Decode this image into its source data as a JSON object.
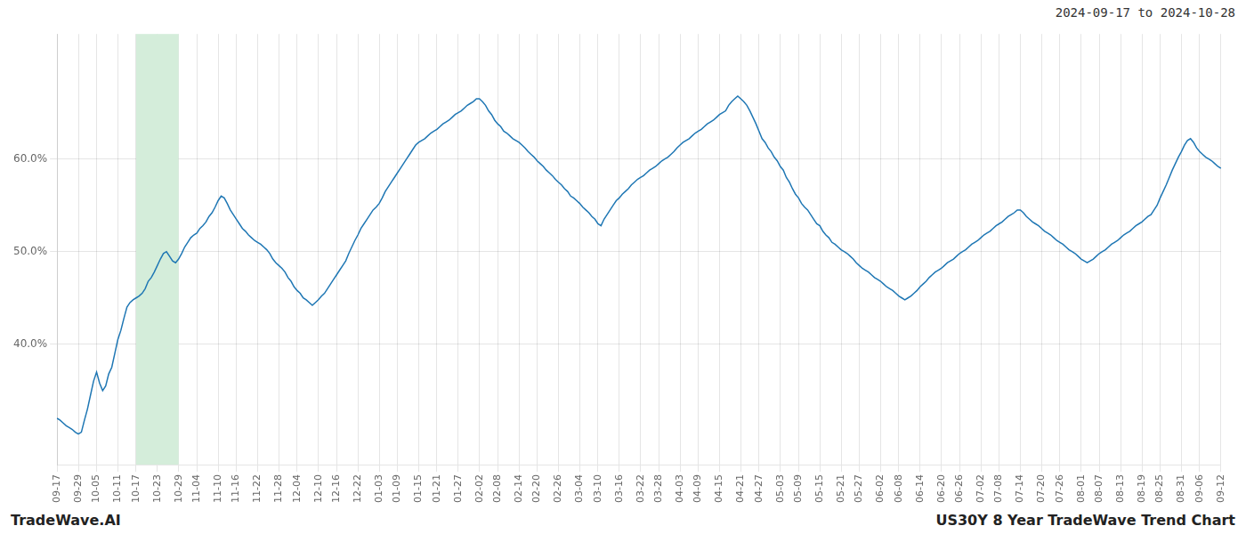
{
  "chart_data": {
    "type": "line",
    "title": "US30Y 8 Year TradeWave Trend Chart",
    "subtitle": "2024-09-17 to 2024-10-28",
    "annotations": [
      "TradeWave.AI"
    ],
    "color": "#1f77b4",
    "grid": true,
    "ylim": [
      0.27,
      0.735
    ],
    "yticks": [
      {
        "value": 0.4,
        "label": "40.0%"
      },
      {
        "value": 0.5,
        "label": "50.0%"
      },
      {
        "value": 0.6,
        "label": "60.0%"
      }
    ],
    "highlight": {
      "start": "10-17",
      "end": "10-29",
      "color": "#d4edda"
    },
    "categories": [
      "09-17",
      null,
      null,
      null,
      null,
      null,
      null,
      "09-29",
      null,
      null,
      null,
      null,
      null,
      "10-05",
      null,
      null,
      null,
      null,
      null,
      null,
      "10-11",
      null,
      null,
      null,
      null,
      null,
      "10-17",
      null,
      null,
      null,
      null,
      null,
      null,
      "10-23",
      null,
      null,
      null,
      null,
      null,
      null,
      "10-29",
      null,
      null,
      null,
      null,
      null,
      "11-04",
      null,
      null,
      null,
      null,
      null,
      null,
      "11-10",
      null,
      null,
      null,
      null,
      null,
      "11-16",
      null,
      null,
      null,
      null,
      null,
      null,
      "11-22",
      null,
      null,
      null,
      null,
      null,
      null,
      "11-28",
      null,
      null,
      null,
      null,
      null,
      "12-04",
      null,
      null,
      null,
      null,
      null,
      null,
      "12-10",
      null,
      null,
      null,
      null,
      null,
      "12-16",
      null,
      null,
      null,
      null,
      null,
      null,
      "12-22",
      null,
      null,
      null,
      null,
      null,
      null,
      "01-03",
      null,
      null,
      null,
      null,
      null,
      "01-09",
      null,
      null,
      null,
      null,
      null,
      null,
      "01-15",
      null,
      null,
      null,
      null,
      null,
      "01-21",
      null,
      null,
      null,
      null,
      null,
      null,
      "01-27",
      null,
      null,
      null,
      null,
      null,
      null,
      "02-02",
      null,
      null,
      null,
      null,
      null,
      "02-08",
      null,
      null,
      null,
      null,
      null,
      null,
      "02-14",
      null,
      null,
      null,
      null,
      null,
      "02-20",
      null,
      null,
      null,
      null,
      null,
      null,
      "02-26",
      null,
      null,
      null,
      null,
      null,
      null,
      "03-04",
      null,
      null,
      null,
      null,
      null,
      "03-10",
      null,
      null,
      null,
      null,
      null,
      null,
      "03-16",
      null,
      null,
      null,
      null,
      null,
      null,
      "03-22",
      null,
      null,
      null,
      null,
      null,
      "03-28",
      null,
      null,
      null,
      null,
      null,
      null,
      "04-03",
      null,
      null,
      null,
      null,
      null,
      "04-09",
      null,
      null,
      null,
      null,
      null,
      null,
      "04-15",
      null,
      null,
      null,
      null,
      null,
      null,
      "04-21",
      null,
      null,
      null,
      null,
      null,
      "04-27",
      null,
      null,
      null,
      null,
      null,
      null,
      "05-03",
      null,
      null,
      null,
      null,
      null,
      "05-09",
      null,
      null,
      null,
      null,
      null,
      null,
      "05-15",
      null,
      null,
      null,
      null,
      null,
      null,
      "05-21",
      null,
      null,
      null,
      null,
      null,
      "05-27",
      null,
      null,
      null,
      null,
      null,
      null,
      "06-02",
      null,
      null,
      null,
      null,
      null,
      "06-08",
      null,
      null,
      null,
      null,
      null,
      null,
      "06-14",
      null,
      null,
      null,
      null,
      null,
      null,
      "06-20",
      null,
      null,
      null,
      null,
      null,
      "06-26",
      null,
      null,
      null,
      null,
      null,
      null,
      "07-02",
      null,
      null,
      null,
      null,
      null,
      "07-08",
      null,
      null,
      null,
      null,
      null,
      null,
      "07-14",
      null,
      null,
      null,
      null,
      null,
      null,
      "07-20",
      null,
      null,
      null,
      null,
      null,
      "07-26",
      null,
      null,
      null,
      null,
      null,
      null,
      "08-01",
      null,
      null,
      null,
      null,
      null,
      "08-07",
      null,
      null,
      null,
      null,
      null,
      null,
      "08-13",
      null,
      null,
      null,
      null,
      null,
      null,
      "08-19",
      null,
      null,
      null,
      null,
      null,
      "08-25",
      null,
      null,
      null,
      null,
      null,
      null,
      "08-31",
      null,
      null,
      null,
      null,
      null,
      "09-06",
      null,
      null,
      null,
      null,
      null,
      null,
      "09-12"
    ],
    "values": [
      0.32,
      0.318,
      0.315,
      0.312,
      0.31,
      0.308,
      0.305,
      0.303,
      0.305,
      0.318,
      0.33,
      0.345,
      0.36,
      0.37,
      0.358,
      0.35,
      0.355,
      0.368,
      0.375,
      0.39,
      0.405,
      0.415,
      0.428,
      0.44,
      0.445,
      0.448,
      0.45,
      0.452,
      0.455,
      0.46,
      0.468,
      0.472,
      0.478,
      0.485,
      0.492,
      0.498,
      0.5,
      0.495,
      0.49,
      0.488,
      0.492,
      0.498,
      0.505,
      0.51,
      0.515,
      0.518,
      0.52,
      0.525,
      0.528,
      0.532,
      0.538,
      0.542,
      0.548,
      0.555,
      0.56,
      0.558,
      0.552,
      0.545,
      0.54,
      0.535,
      0.53,
      0.525,
      0.522,
      0.518,
      0.515,
      0.512,
      0.51,
      0.508,
      0.505,
      0.502,
      0.498,
      0.492,
      0.488,
      0.485,
      0.482,
      0.478,
      0.472,
      0.468,
      0.462,
      0.458,
      0.455,
      0.45,
      0.448,
      0.445,
      0.442,
      0.445,
      0.448,
      0.452,
      0.455,
      0.46,
      0.465,
      0.47,
      0.475,
      0.48,
      0.485,
      0.49,
      0.498,
      0.505,
      0.512,
      0.518,
      0.525,
      0.53,
      0.535,
      0.54,
      0.545,
      0.548,
      0.552,
      0.558,
      0.565,
      0.57,
      0.575,
      0.58,
      0.585,
      0.59,
      0.595,
      0.6,
      0.605,
      0.61,
      0.615,
      0.618,
      0.62,
      0.622,
      0.625,
      0.628,
      0.63,
      0.632,
      0.635,
      0.638,
      0.64,
      0.642,
      0.645,
      0.648,
      0.65,
      0.652,
      0.655,
      0.658,
      0.66,
      0.662,
      0.665,
      0.665,
      0.662,
      0.658,
      0.652,
      0.648,
      0.642,
      0.638,
      0.635,
      0.63,
      0.628,
      0.625,
      0.622,
      0.62,
      0.618,
      0.615,
      0.612,
      0.608,
      0.605,
      0.602,
      0.598,
      0.595,
      0.592,
      0.588,
      0.585,
      0.582,
      0.578,
      0.575,
      0.572,
      0.568,
      0.565,
      0.56,
      0.558,
      0.555,
      0.552,
      0.548,
      0.545,
      0.542,
      0.538,
      0.535,
      0.53,
      0.528,
      0.535,
      0.54,
      0.545,
      0.55,
      0.555,
      0.558,
      0.562,
      0.565,
      0.568,
      0.572,
      0.575,
      0.578,
      0.58,
      0.582,
      0.585,
      0.588,
      0.59,
      0.592,
      0.595,
      0.598,
      0.6,
      0.602,
      0.605,
      0.608,
      0.612,
      0.615,
      0.618,
      0.62,
      0.622,
      0.625,
      0.628,
      0.63,
      0.632,
      0.635,
      0.638,
      0.64,
      0.642,
      0.645,
      0.648,
      0.65,
      0.652,
      0.658,
      0.662,
      0.665,
      0.668,
      0.665,
      0.662,
      0.658,
      0.652,
      0.645,
      0.638,
      0.63,
      0.622,
      0.618,
      0.612,
      0.608,
      0.602,
      0.598,
      0.592,
      0.588,
      0.58,
      0.575,
      0.568,
      0.562,
      0.558,
      0.552,
      0.548,
      0.545,
      0.54,
      0.535,
      0.53,
      0.528,
      0.522,
      0.518,
      0.515,
      0.51,
      0.508,
      0.505,
      0.502,
      0.5,
      0.498,
      0.495,
      0.492,
      0.488,
      0.485,
      0.482,
      0.48,
      0.478,
      0.475,
      0.472,
      0.47,
      0.468,
      0.465,
      0.462,
      0.46,
      0.458,
      0.455,
      0.452,
      0.45,
      0.448,
      0.45,
      0.452,
      0.455,
      0.458,
      0.462,
      0.465,
      0.468,
      0.472,
      0.475,
      0.478,
      0.48,
      0.482,
      0.485,
      0.488,
      0.49,
      0.492,
      0.495,
      0.498,
      0.5,
      0.502,
      0.505,
      0.508,
      0.51,
      0.512,
      0.515,
      0.518,
      0.52,
      0.522,
      0.525,
      0.528,
      0.53,
      0.532,
      0.535,
      0.538,
      0.54,
      0.542,
      0.545,
      0.545,
      0.542,
      0.538,
      0.535,
      0.532,
      0.53,
      0.528,
      0.525,
      0.522,
      0.52,
      0.518,
      0.515,
      0.512,
      0.51,
      0.508,
      0.505,
      0.502,
      0.5,
      0.498,
      0.495,
      0.492,
      0.49,
      0.488,
      0.49,
      0.492,
      0.495,
      0.498,
      0.5,
      0.502,
      0.505,
      0.508,
      0.51,
      0.512,
      0.515,
      0.518,
      0.52,
      0.522,
      0.525,
      0.528,
      0.53,
      0.532,
      0.535,
      0.538,
      0.54,
      0.545,
      0.55,
      0.558,
      0.565,
      0.572,
      0.58,
      0.588,
      0.595,
      0.602,
      0.608,
      0.615,
      0.62,
      0.622,
      0.618,
      0.612,
      0.608,
      0.605,
      0.602,
      0.6,
      0.598,
      0.595,
      0.592,
      0.59
    ]
  }
}
